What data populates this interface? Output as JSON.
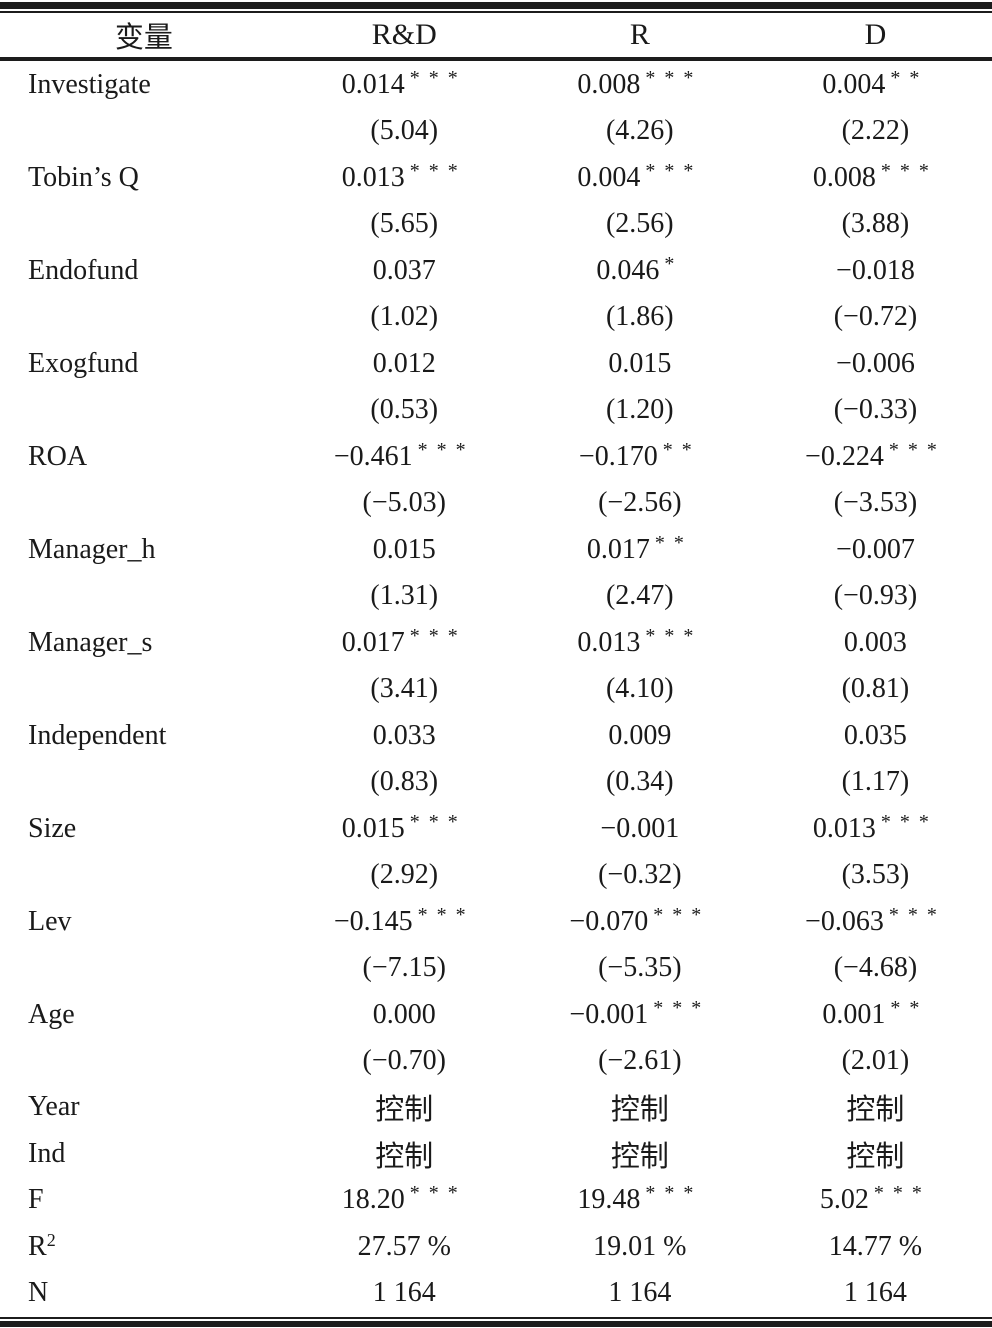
{
  "page": {
    "background": "#ffffff",
    "text_color": "#1a1a1a",
    "rule_color": "#1c1c1c"
  },
  "table": {
    "columns": [
      "变量",
      "R&D",
      "R",
      "D"
    ],
    "control_label": "控制",
    "variables": [
      {
        "label": "Investigate",
        "coefs": [
          {
            "value": "0.014",
            "stars": "***"
          },
          {
            "value": "0.008",
            "stars": "***"
          },
          {
            "value": "0.004",
            "stars": "**"
          }
        ],
        "tvals": [
          "(5.04)",
          "(4.26)",
          "(2.22)"
        ]
      },
      {
        "label": "Tobin’s Q",
        "coefs": [
          {
            "value": "0.013",
            "stars": "***"
          },
          {
            "value": "0.004",
            "stars": "***"
          },
          {
            "value": "0.008",
            "stars": "***"
          }
        ],
        "tvals": [
          "(5.65)",
          "(2.56)",
          "(3.88)"
        ]
      },
      {
        "label": "Endofund",
        "coefs": [
          {
            "value": "0.037",
            "stars": ""
          },
          {
            "value": "0.046",
            "stars": "*"
          },
          {
            "value": "−0.018",
            "stars": ""
          }
        ],
        "tvals": [
          "(1.02)",
          "(1.86)",
          "(−0.72)"
        ]
      },
      {
        "label": "Exogfund",
        "coefs": [
          {
            "value": "0.012",
            "stars": ""
          },
          {
            "value": "0.015",
            "stars": ""
          },
          {
            "value": "−0.006",
            "stars": ""
          }
        ],
        "tvals": [
          "(0.53)",
          "(1.20)",
          "(−0.33)"
        ]
      },
      {
        "label": "ROA",
        "coefs": [
          {
            "value": "−0.461",
            "stars": "***"
          },
          {
            "value": "−0.170",
            "stars": "**"
          },
          {
            "value": "−0.224",
            "stars": "***"
          }
        ],
        "tvals": [
          "(−5.03)",
          "(−2.56)",
          "(−3.53)"
        ]
      },
      {
        "label": "Manager_h",
        "coefs": [
          {
            "value": "0.015",
            "stars": ""
          },
          {
            "value": "0.017",
            "stars": "**"
          },
          {
            "value": "−0.007",
            "stars": ""
          }
        ],
        "tvals": [
          "(1.31)",
          "(2.47)",
          "(−0.93)"
        ]
      },
      {
        "label": "Manager_s",
        "coefs": [
          {
            "value": "0.017",
            "stars": "***"
          },
          {
            "value": "0.013",
            "stars": "***"
          },
          {
            "value": "0.003",
            "stars": ""
          }
        ],
        "tvals": [
          "(3.41)",
          "(4.10)",
          "(0.81)"
        ]
      },
      {
        "label": "Independent",
        "coefs": [
          {
            "value": "0.033",
            "stars": ""
          },
          {
            "value": "0.009",
            "stars": ""
          },
          {
            "value": "0.035",
            "stars": ""
          }
        ],
        "tvals": [
          "(0.83)",
          "(0.34)",
          "(1.17)"
        ]
      },
      {
        "label": "Size",
        "coefs": [
          {
            "value": "0.015",
            "stars": "***"
          },
          {
            "value": "−0.001",
            "stars": ""
          },
          {
            "value": "0.013",
            "stars": "***"
          }
        ],
        "tvals": [
          "(2.92)",
          "(−0.32)",
          "(3.53)"
        ]
      },
      {
        "label": "Lev",
        "coefs": [
          {
            "value": "−0.145",
            "stars": "***"
          },
          {
            "value": "−0.070",
            "stars": "***"
          },
          {
            "value": "−0.063",
            "stars": "***"
          }
        ],
        "tvals": [
          "(−7.15)",
          "(−5.35)",
          "(−4.68)"
        ]
      },
      {
        "label": "Age",
        "coefs": [
          {
            "value": "0.000",
            "stars": ""
          },
          {
            "value": "−0.001",
            "stars": "***"
          },
          {
            "value": "0.001",
            "stars": "**"
          }
        ],
        "tvals": [
          "(−0.70)",
          "(−2.61)",
          "(2.01)"
        ]
      }
    ],
    "summary": [
      {
        "label": "Year",
        "label_sup": "",
        "cjk": true,
        "cells": [
          {
            "value": "控制",
            "stars": ""
          },
          {
            "value": "控制",
            "stars": ""
          },
          {
            "value": "控制",
            "stars": ""
          }
        ]
      },
      {
        "label": "Ind",
        "label_sup": "",
        "cjk": true,
        "cells": [
          {
            "value": "控制",
            "stars": ""
          },
          {
            "value": "控制",
            "stars": ""
          },
          {
            "value": "控制",
            "stars": ""
          }
        ]
      },
      {
        "label": "F",
        "label_sup": "",
        "cjk": false,
        "cells": [
          {
            "value": "18.20",
            "stars": "***"
          },
          {
            "value": "19.48",
            "stars": "***"
          },
          {
            "value": "5.02",
            "stars": "***"
          }
        ]
      },
      {
        "label": "R",
        "label_sup": "2",
        "cjk": false,
        "cells": [
          {
            "value": "27.57 %",
            "stars": ""
          },
          {
            "value": "19.01 %",
            "stars": ""
          },
          {
            "value": "14.77 %",
            "stars": ""
          }
        ]
      },
      {
        "label": "N",
        "label_sup": "",
        "cjk": false,
        "cells": [
          {
            "value": "1 164",
            "stars": ""
          },
          {
            "value": "1 164",
            "stars": ""
          },
          {
            "value": "1 164",
            "stars": ""
          }
        ]
      }
    ]
  }
}
